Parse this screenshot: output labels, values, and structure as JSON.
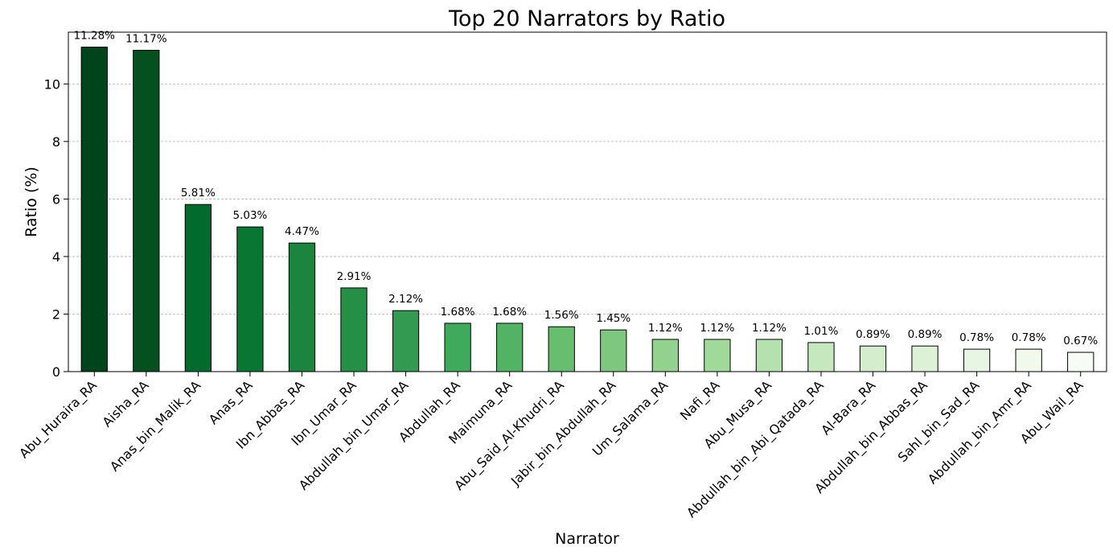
{
  "chart_data": {
    "type": "bar",
    "title": "Top 20 Narrators by Ratio",
    "xlabel": "Narrator",
    "ylabel": "Ratio (%)",
    "ylim": [
      0,
      11.8
    ],
    "yticks": [
      0,
      2,
      4,
      6,
      8,
      10
    ],
    "grid": "y-dashed",
    "legend": "none",
    "value_suffix": "%",
    "categories": [
      "Abu_Huraira_RA",
      "Aisha_RA",
      "Anas_bin_Malik_RA",
      "Anas_RA",
      "Ibn_Abbas_RA",
      "Ibn_Umar_RA",
      "Abdullah_bin_Umar_RA",
      "Abdullah_RA",
      "Maimuna_RA",
      "Abu_Said_Al-Khudri_RA",
      "Jabir_bin_Abdullah_RA",
      "Um_Salama_RA",
      "Nafi_RA",
      "Abu_Musa_RA",
      "Abdullah_bin_Abi_Qatada_RA",
      "Al-Bara_RA",
      "Abdullah_bin_Abbas_RA",
      "Sahl_bin_Sad_RA",
      "Abdullah_bin_Amr_RA",
      "Abu_Wail_RA"
    ],
    "values": [
      11.28,
      11.17,
      5.81,
      5.03,
      4.47,
      2.91,
      2.12,
      1.68,
      1.68,
      1.56,
      1.45,
      1.12,
      1.12,
      1.12,
      1.01,
      0.89,
      0.89,
      0.78,
      0.78,
      0.67
    ],
    "colors": [
      "#00441b",
      "#04501f",
      "#006b2c",
      "#0a7633",
      "#1b843f",
      "#258f46",
      "#339b51",
      "#40aa5c",
      "#53b365",
      "#67be6f",
      "#7dc87e",
      "#92d28e",
      "#a1d99b",
      "#b5e1ae",
      "#c5e8be",
      "#d4eecd",
      "#dcf1d6",
      "#e7f6e3",
      "#f0f9ec",
      "#f7fcf5"
    ]
  }
}
